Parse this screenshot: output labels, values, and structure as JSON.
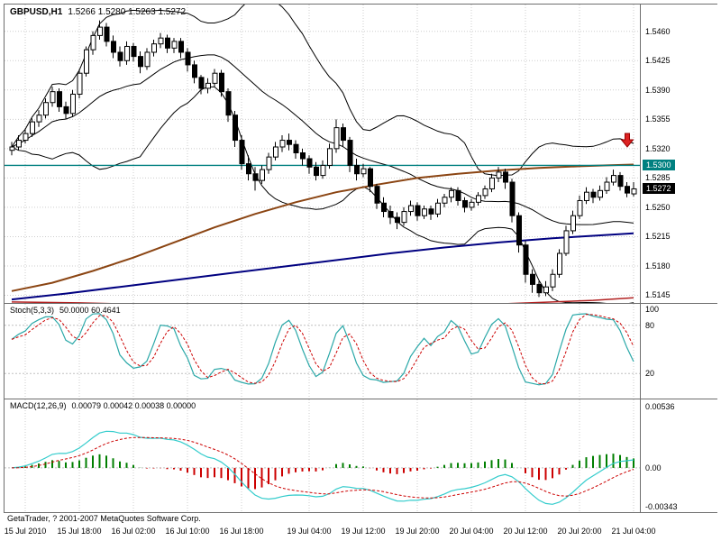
{
  "header": {
    "symbol_period": "GBPUSD,H1",
    "ohlc": "1.5266 1.5280 1.5263 1.5272"
  },
  "footer": {
    "copyright": "GetaTrader, ? 2001-2007 MetaQuotes Software Corp."
  },
  "colors": {
    "grid": "#cdcdcd",
    "panel_border": "#6e6e6e",
    "bull_body": "#ffffff",
    "bear_body": "#000000",
    "wick": "#000000",
    "level_teal": "#008080",
    "current_price_badge": "#000000",
    "arrow_red": "#dd2222"
  },
  "chart_data": {
    "type": "candlestick",
    "title": "GBPUSD,H1",
    "symbol": "GBPUSD",
    "timeframe": "H1",
    "price_range": {
      "top": 1.5492,
      "bottom": 1.5138
    },
    "price_axis_ticks": [
      "1.5460",
      "1.5425",
      "1.5390",
      "1.5355",
      "1.5320",
      "1.5285",
      "1.5250",
      "1.5215",
      "1.5180",
      "1.5145"
    ],
    "level_line": {
      "price": 1.53,
      "label": "1.5300",
      "color": "#008080"
    },
    "current_price": {
      "value": 1.5272,
      "label": "1.5272"
    },
    "sell_arrow": {
      "bar": 91,
      "price": 1.5322
    },
    "time_labels": [
      {
        "bar": 2,
        "text": "15 Jul 2010"
      },
      {
        "bar": 10,
        "text": "15 Jul 18:00"
      },
      {
        "bar": 18,
        "text": "16 Jul 02:00"
      },
      {
        "bar": 26,
        "text": "16 Jul 10:00"
      },
      {
        "bar": 34,
        "text": "16 Jul 18:00"
      },
      {
        "bar": 44,
        "text": "19 Jul 04:00"
      },
      {
        "bar": 52,
        "text": "19 Jul 12:00"
      },
      {
        "bar": 60,
        "text": "19 Jul 20:00"
      },
      {
        "bar": 68,
        "text": "20 Jul 04:00"
      },
      {
        "bar": 76,
        "text": "20 Jul 12:00"
      },
      {
        "bar": 84,
        "text": "20 Jul 20:00"
      },
      {
        "bar": 92,
        "text": "21 Jul 04:00"
      }
    ],
    "candles": [
      [
        1.5318,
        1.5328,
        1.5312,
        1.5322
      ],
      [
        1.5322,
        1.5336,
        1.5318,
        1.533
      ],
      [
        1.533,
        1.5344,
        1.5326,
        1.5338
      ],
      [
        1.5338,
        1.5356,
        1.5334,
        1.5352
      ],
      [
        1.5352,
        1.5366,
        1.5346,
        1.536
      ],
      [
        1.536,
        1.538,
        1.5356,
        1.5375
      ],
      [
        1.5375,
        1.5394,
        1.537,
        1.5388
      ],
      [
        1.5388,
        1.5392,
        1.5364,
        1.537
      ],
      [
        1.537,
        1.5376,
        1.5355,
        1.5362
      ],
      [
        1.5362,
        1.539,
        1.5358,
        1.5385
      ],
      [
        1.5385,
        1.5415,
        1.538,
        1.541
      ],
      [
        1.541,
        1.5442,
        1.5406,
        1.5438
      ],
      [
        1.5438,
        1.546,
        1.5432,
        1.5455
      ],
      [
        1.5455,
        1.5473,
        1.545,
        1.5465
      ],
      [
        1.5465,
        1.547,
        1.5442,
        1.5448
      ],
      [
        1.5448,
        1.5455,
        1.5428,
        1.5435
      ],
      [
        1.5435,
        1.5442,
        1.5418,
        1.5425
      ],
      [
        1.5425,
        1.5448,
        1.542,
        1.5442
      ],
      [
        1.5442,
        1.5446,
        1.5424,
        1.543
      ],
      [
        1.543,
        1.5436,
        1.541,
        1.5418
      ],
      [
        1.5418,
        1.544,
        1.5414,
        1.5435
      ],
      [
        1.5435,
        1.545,
        1.543,
        1.5445
      ],
      [
        1.5445,
        1.5458,
        1.544,
        1.5452
      ],
      [
        1.5452,
        1.5456,
        1.5434,
        1.544
      ],
      [
        1.544,
        1.5452,
        1.5434,
        1.5448
      ],
      [
        1.5448,
        1.5452,
        1.5428,
        1.5435
      ],
      [
        1.5435,
        1.544,
        1.5412,
        1.542
      ],
      [
        1.542,
        1.5425,
        1.5398,
        1.5405
      ],
      [
        1.5405,
        1.5408,
        1.5385,
        1.5392
      ],
      [
        1.5392,
        1.5404,
        1.5386,
        1.5398
      ],
      [
        1.5398,
        1.5415,
        1.5394,
        1.541
      ],
      [
        1.541,
        1.5414,
        1.5382,
        1.5388
      ],
      [
        1.5388,
        1.5392,
        1.5352,
        1.536
      ],
      [
        1.536,
        1.5365,
        1.5322,
        1.533
      ],
      [
        1.533,
        1.5336,
        1.5295,
        1.5302
      ],
      [
        1.5302,
        1.5312,
        1.5282,
        1.529
      ],
      [
        1.529,
        1.5298,
        1.527,
        1.5282
      ],
      [
        1.5282,
        1.53,
        1.5278,
        1.5295
      ],
      [
        1.5295,
        1.5315,
        1.529,
        1.531
      ],
      [
        1.531,
        1.5328,
        1.5306,
        1.5322
      ],
      [
        1.5322,
        1.5336,
        1.5316,
        1.533
      ],
      [
        1.533,
        1.5338,
        1.5318,
        1.5325
      ],
      [
        1.5325,
        1.533,
        1.5308,
        1.5315
      ],
      [
        1.5315,
        1.532,
        1.53,
        1.5308
      ],
      [
        1.5308,
        1.5312,
        1.529,
        1.5298
      ],
      [
        1.5298,
        1.5304,
        1.5282,
        1.5288
      ],
      [
        1.5288,
        1.5306,
        1.5284,
        1.53
      ],
      [
        1.53,
        1.5326,
        1.5296,
        1.532
      ],
      [
        1.532,
        1.5355,
        1.5315,
        1.5345
      ],
      [
        1.5345,
        1.535,
        1.5322,
        1.533
      ],
      [
        1.533,
        1.5334,
        1.5292,
        1.53
      ],
      [
        1.53,
        1.5308,
        1.5282,
        1.529
      ],
      [
        1.529,
        1.5302,
        1.5286,
        1.5296
      ],
      [
        1.5296,
        1.5298,
        1.5268,
        1.5275
      ],
      [
        1.5275,
        1.5278,
        1.5248,
        1.5255
      ],
      [
        1.5255,
        1.5262,
        1.5238,
        1.5245
      ],
      [
        1.5245,
        1.5252,
        1.523,
        1.5238
      ],
      [
        1.5238,
        1.5244,
        1.5224,
        1.5232
      ],
      [
        1.5232,
        1.525,
        1.5228,
        1.5245
      ],
      [
        1.5245,
        1.5258,
        1.524,
        1.5252
      ],
      [
        1.5252,
        1.5256,
        1.5234,
        1.524
      ],
      [
        1.524,
        1.5252,
        1.5236,
        1.5248
      ],
      [
        1.5248,
        1.5252,
        1.5235,
        1.5242
      ],
      [
        1.5242,
        1.526,
        1.5238,
        1.5255
      ],
      [
        1.5255,
        1.5266,
        1.525,
        1.5262
      ],
      [
        1.5262,
        1.5274,
        1.5256,
        1.527
      ],
      [
        1.527,
        1.5274,
        1.5252,
        1.5258
      ],
      [
        1.5258,
        1.5262,
        1.5244,
        1.525
      ],
      [
        1.525,
        1.526,
        1.5246,
        1.5256
      ],
      [
        1.5256,
        1.5268,
        1.5252,
        1.5264
      ],
      [
        1.5264,
        1.5276,
        1.526,
        1.5272
      ],
      [
        1.5272,
        1.529,
        1.5268,
        1.5285
      ],
      [
        1.5285,
        1.5298,
        1.528,
        1.5292
      ],
      [
        1.5292,
        1.5296,
        1.5272,
        1.528
      ],
      [
        1.528,
        1.5284,
        1.5232,
        1.524
      ],
      [
        1.524,
        1.5244,
        1.5196,
        1.5205
      ],
      [
        1.5205,
        1.521,
        1.516,
        1.517
      ],
      [
        1.517,
        1.5176,
        1.5148,
        1.5158
      ],
      [
        1.5158,
        1.5162,
        1.5143,
        1.5148
      ],
      [
        1.5148,
        1.5162,
        1.5144,
        1.5155
      ],
      [
        1.5155,
        1.5176,
        1.515,
        1.517
      ],
      [
        1.517,
        1.52,
        1.5166,
        1.5195
      ],
      [
        1.5195,
        1.5228,
        1.5192,
        1.5222
      ],
      [
        1.5222,
        1.5246,
        1.5218,
        1.524
      ],
      [
        1.524,
        1.5264,
        1.5236,
        1.5258
      ],
      [
        1.5258,
        1.5274,
        1.5254,
        1.5268
      ],
      [
        1.5268,
        1.5272,
        1.5255,
        1.5262
      ],
      [
        1.5262,
        1.5276,
        1.5258,
        1.527
      ],
      [
        1.527,
        1.5286,
        1.5266,
        1.528
      ],
      [
        1.528,
        1.5295,
        1.5276,
        1.5288
      ],
      [
        1.5288,
        1.5292,
        1.527,
        1.5275
      ],
      [
        1.5275,
        1.528,
        1.5262,
        1.5267
      ],
      [
        1.5266,
        1.528,
        1.5263,
        1.5272
      ]
    ],
    "overlays": {
      "bollinger": {
        "period": 20,
        "deviation": 2,
        "color": "#000000"
      },
      "ma_brown": {
        "color": "#8B4513",
        "width": 2,
        "points": [
          [
            0,
            1.515
          ],
          [
            6,
            1.516
          ],
          [
            12,
            1.5174
          ],
          [
            18,
            1.519
          ],
          [
            24,
            1.5208
          ],
          [
            30,
            1.5226
          ],
          [
            36,
            1.5242
          ],
          [
            42,
            1.5256
          ],
          [
            48,
            1.5268
          ],
          [
            54,
            1.5277
          ],
          [
            60,
            1.5285
          ],
          [
            66,
            1.529
          ],
          [
            72,
            1.5294
          ],
          [
            78,
            1.5297
          ],
          [
            84,
            1.5299
          ],
          [
            88,
            1.53
          ],
          [
            92,
            1.5301
          ]
        ]
      },
      "ma_navy": {
        "color": "#000080",
        "width": 2,
        "points": [
          [
            0,
            1.514
          ],
          [
            8,
            1.5147
          ],
          [
            16,
            1.5155
          ],
          [
            24,
            1.5163
          ],
          [
            32,
            1.5171
          ],
          [
            40,
            1.5179
          ],
          [
            48,
            1.5187
          ],
          [
            56,
            1.5195
          ],
          [
            64,
            1.5202
          ],
          [
            72,
            1.5208
          ],
          [
            80,
            1.5213
          ],
          [
            86,
            1.5216
          ],
          [
            92,
            1.5219
          ]
        ]
      },
      "ma_red": {
        "color": "#B22222",
        "width": 1.5,
        "points": [
          [
            0,
            1.5137
          ],
          [
            10,
            1.5136
          ],
          [
            20,
            1.5134
          ],
          [
            30,
            1.5132
          ],
          [
            40,
            1.5131
          ],
          [
            50,
            1.5131
          ],
          [
            60,
            1.5132
          ],
          [
            70,
            1.5134
          ],
          [
            80,
            1.5137
          ],
          [
            86,
            1.5139
          ],
          [
            92,
            1.5142
          ]
        ]
      }
    },
    "stochastic": {
      "label": "Stoch(5,3,3)",
      "values_text": "50.0000 60.4641",
      "k": 5,
      "d": 3,
      "slowing": 3,
      "axis_ticks": [
        "100",
        "80",
        "20"
      ],
      "levels": [
        80,
        20
      ],
      "range": {
        "max": 100,
        "min": 0
      },
      "main_color": "#2AA8A8",
      "signal_color": "#CC0000"
    },
    "macd": {
      "label": "MACD(12,26,9)",
      "values_text": "0.00079 0.00042 0.00038 0.00000",
      "fast": 12,
      "slow": 26,
      "signal": 9,
      "axis_ticks": [
        "0.00536",
        "0.00",
        "-0.00343"
      ],
      "range": {
        "max": 0.006,
        "min": -0.0038
      },
      "line_color": "#33CCCC",
      "signal_color": "#CC0000",
      "hist_up": "#007F00",
      "hist_down": "#CC0000"
    }
  }
}
